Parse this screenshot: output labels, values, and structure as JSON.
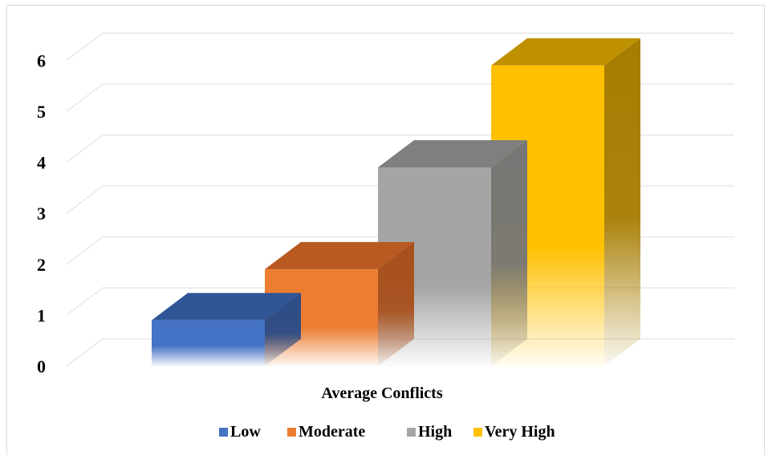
{
  "chart_data": {
    "type": "bar",
    "style": "3d-column",
    "categories": [
      "Average Conflicts"
    ],
    "series": [
      {
        "name": "Low",
        "values": [
          0.9
        ],
        "color": "#4472C4",
        "top_color": "#2F5597",
        "side_color": "#2A4C88"
      },
      {
        "name": "Moderate",
        "values": [
          1.9
        ],
        "color": "#ED7D31",
        "top_color": "#B85A21",
        "side_color": "#A8501C"
      },
      {
        "name": "High",
        "values": [
          3.9
        ],
        "color": "#A5A5A5",
        "top_color": "#7F7F7F",
        "side_color": "#767676"
      },
      {
        "name": "Very High",
        "values": [
          5.9
        ],
        "color": "#FFC000",
        "top_color": "#BF9000",
        "side_color": "#A67C00"
      }
    ],
    "y_ticks": [
      "0",
      "1",
      "2",
      "3",
      "4",
      "5",
      "6"
    ],
    "ylim": [
      0,
      6
    ],
    "grid": true,
    "legend_position": "bottom"
  }
}
